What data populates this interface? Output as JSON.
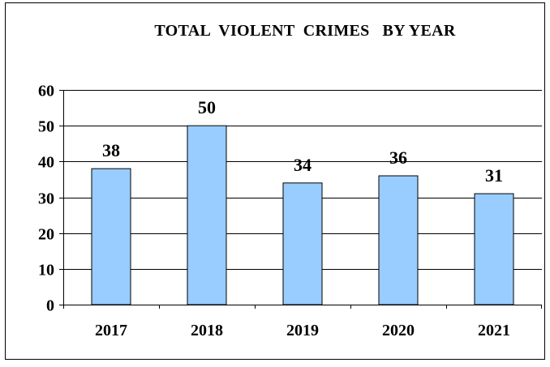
{
  "chart_data": {
    "type": "bar",
    "title": "TOTAL  VIOLENT  CRIMES   BY YEAR",
    "xlabel": "",
    "ylabel": "",
    "categories": [
      "2017",
      "2018",
      "2019",
      "2020",
      "2021"
    ],
    "values": [
      38,
      50,
      34,
      36,
      31
    ],
    "data_labels": [
      "38",
      "50",
      "34",
      "36",
      "31"
    ],
    "ylim": [
      0,
      60
    ],
    "yticks": [
      0,
      10,
      20,
      30,
      40,
      50,
      60
    ],
    "ytick_labels": [
      "0",
      "10",
      "20",
      "30",
      "40",
      "50",
      "60"
    ],
    "grid": true,
    "legend": "none",
    "colors": {
      "bar_fill": "#99ccff",
      "bar_stroke": "#000000",
      "grid": "#000000",
      "frame": "#000000",
      "background": "#ffffff"
    }
  }
}
